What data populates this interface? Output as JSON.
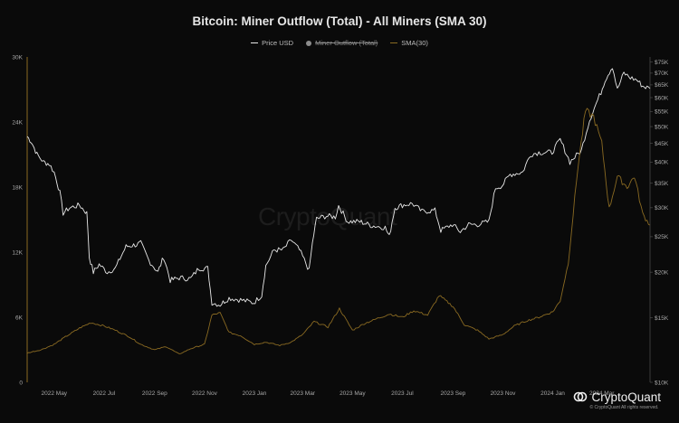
{
  "title": "Bitcoin: Miner Outflow (Total) - All Miners (SMA 30)",
  "legend": [
    {
      "label": "Price USD",
      "color": "#e8e8e8",
      "marker": "line",
      "struck": false
    },
    {
      "label": "Miner Outflow (Total)",
      "color": "#8c8c8c",
      "marker": "dot",
      "struck": true
    },
    {
      "label": "SMA(30)",
      "color": "#8a6a22",
      "marker": "line",
      "struck": false
    }
  ],
  "watermark": "CryptoQuant",
  "brand": {
    "name": "CryptoQuant",
    "sub": "© CryptoQuant All rights reserved."
  },
  "chart_data": {
    "type": "line",
    "title": "Bitcoin: Miner Outflow (Total) - All Miners (SMA 30)",
    "x_ticks": [
      "2022 May",
      "2022 Jul",
      "2022 Sep",
      "2022 Nov",
      "2023 Jan",
      "2023 Mar",
      "2023 May",
      "2023 Jul",
      "2023 Sep",
      "2023 Nov",
      "2024 Jan",
      "2024 Mar"
    ],
    "x_tick_dates": [
      "2022-05-01",
      "2022-07-01",
      "2022-09-01",
      "2022-11-01",
      "2023-01-01",
      "2023-03-01",
      "2023-05-01",
      "2023-07-01",
      "2023-09-01",
      "2023-11-01",
      "2024-01-01",
      "2024-03-01"
    ],
    "xlim": [
      "2022-03-29",
      "2024-04-29"
    ],
    "y_left": {
      "ylim": [
        0,
        30000
      ],
      "ticks": [
        "0",
        "6K",
        "12K",
        "18K",
        "24K",
        "30K"
      ],
      "values": [
        0,
        6000,
        12000,
        18000,
        24000,
        30000
      ]
    },
    "y_right": {
      "ylim": [
        10000,
        77500
      ],
      "log": true,
      "ticks": [
        "$10K",
        "$15K",
        "$20K",
        "$25K",
        "$30K",
        "$35K",
        "$40K",
        "$45K",
        "$50K",
        "$55K",
        "$60K",
        "$65K",
        "$70K",
        "$75K"
      ],
      "values": [
        10000,
        15000,
        20000,
        25000,
        30000,
        35000,
        40000,
        45000,
        50000,
        55000,
        60000,
        65000,
        70000,
        75000
      ]
    },
    "grid": false,
    "legend_position": "top-center",
    "series": [
      {
        "name": "Price USD",
        "axis": "right",
        "color": "#e8e8e8",
        "x": [
          "2022-03-29",
          "2022-04-03",
          "2022-04-10",
          "2022-04-18",
          "2022-04-25",
          "2022-05-01",
          "2022-05-08",
          "2022-05-12",
          "2022-05-20",
          "2022-06-01",
          "2022-06-10",
          "2022-06-13",
          "2022-06-18",
          "2022-06-25",
          "2022-07-05",
          "2022-07-15",
          "2022-07-28",
          "2022-08-10",
          "2022-08-15",
          "2022-08-25",
          "2022-09-05",
          "2022-09-12",
          "2022-09-20",
          "2022-10-01",
          "2022-10-15",
          "2022-10-25",
          "2022-11-05",
          "2022-11-08",
          "2022-11-10",
          "2022-11-20",
          "2022-12-01",
          "2022-12-15",
          "2022-12-31",
          "2023-01-10",
          "2023-01-15",
          "2023-01-25",
          "2023-02-05",
          "2023-02-15",
          "2023-02-25",
          "2023-03-09",
          "2023-03-13",
          "2023-03-18",
          "2023-03-30",
          "2023-04-10",
          "2023-04-14",
          "2023-04-25",
          "2023-05-10",
          "2023-05-25",
          "2023-06-10",
          "2023-06-15",
          "2023-06-22",
          "2023-07-01",
          "2023-07-13",
          "2023-07-25",
          "2023-08-10",
          "2023-08-17",
          "2023-08-31",
          "2023-09-10",
          "2023-09-20",
          "2023-10-01",
          "2023-10-15",
          "2023-10-23",
          "2023-10-31",
          "2023-11-10",
          "2023-11-25",
          "2023-12-05",
          "2023-12-15",
          "2023-12-31",
          "2024-01-10",
          "2024-01-22",
          "2024-02-05",
          "2024-02-15",
          "2024-02-29",
          "2024-03-05",
          "2024-03-14",
          "2024-03-20",
          "2024-03-28",
          "2024-04-05",
          "2024-04-13",
          "2024-04-20",
          "2024-04-29"
        ],
        "values": [
          47000,
          45500,
          42000,
          40000,
          39500,
          37500,
          33000,
          29000,
          30000,
          30500,
          29000,
          22000,
          20000,
          21000,
          20000,
          20500,
          23500,
          23800,
          24000,
          21500,
          20000,
          22000,
          19000,
          19300,
          19200,
          20500,
          20500,
          18000,
          16500,
          16300,
          17000,
          16800,
          16500,
          17300,
          20800,
          23000,
          23000,
          24500,
          23000,
          20200,
          24000,
          28000,
          28500,
          28300,
          30400,
          27500,
          27500,
          26800,
          26500,
          25000,
          30000,
          30500,
          30800,
          29300,
          29500,
          26000,
          27000,
          25800,
          27000,
          27000,
          27500,
          34000,
          34500,
          37000,
          37500,
          42000,
          42500,
          42500,
          46000,
          40000,
          43000,
          52000,
          62000,
          67000,
          73000,
          63000,
          70000,
          68000,
          67000,
          64500,
          63500
        ]
      },
      {
        "name": "SMA(30)",
        "axis": "left",
        "color": "#8a6a22",
        "x": [
          "2022-03-29",
          "2022-04-15",
          "2022-05-01",
          "2022-05-15",
          "2022-06-01",
          "2022-06-15",
          "2022-07-01",
          "2022-07-15",
          "2022-08-01",
          "2022-08-15",
          "2022-09-01",
          "2022-09-15",
          "2022-10-01",
          "2022-10-15",
          "2022-11-01",
          "2022-11-10",
          "2022-11-20",
          "2022-12-01",
          "2022-12-15",
          "2023-01-01",
          "2023-01-15",
          "2023-02-01",
          "2023-02-15",
          "2023-03-01",
          "2023-03-15",
          "2023-04-01",
          "2023-04-15",
          "2023-05-01",
          "2023-05-15",
          "2023-06-01",
          "2023-06-15",
          "2023-07-01",
          "2023-07-15",
          "2023-08-01",
          "2023-08-15",
          "2023-09-01",
          "2023-09-15",
          "2023-10-01",
          "2023-10-15",
          "2023-11-01",
          "2023-11-15",
          "2023-12-01",
          "2023-12-15",
          "2024-01-01",
          "2024-01-10",
          "2024-01-20",
          "2024-02-01",
          "2024-02-10",
          "2024-02-20",
          "2024-03-01",
          "2024-03-10",
          "2024-03-20",
          "2024-04-01",
          "2024-04-10",
          "2024-04-20",
          "2024-04-29"
        ],
        "values": [
          2700,
          3000,
          3500,
          4200,
          5000,
          5500,
          5200,
          4800,
          4200,
          3500,
          3000,
          3300,
          2600,
          3100,
          3500,
          6200,
          6400,
          4600,
          4300,
          3500,
          3700,
          3400,
          3700,
          4400,
          5600,
          5100,
          6800,
          4800,
          5400,
          5900,
          6300,
          6000,
          6600,
          6200,
          8000,
          7000,
          5300,
          4800,
          4000,
          4400,
          5200,
          5700,
          6000,
          6500,
          7500,
          11000,
          20000,
          25000,
          24500,
          22000,
          16000,
          19000,
          18000,
          19000,
          15500,
          14500
        ]
      }
    ]
  }
}
